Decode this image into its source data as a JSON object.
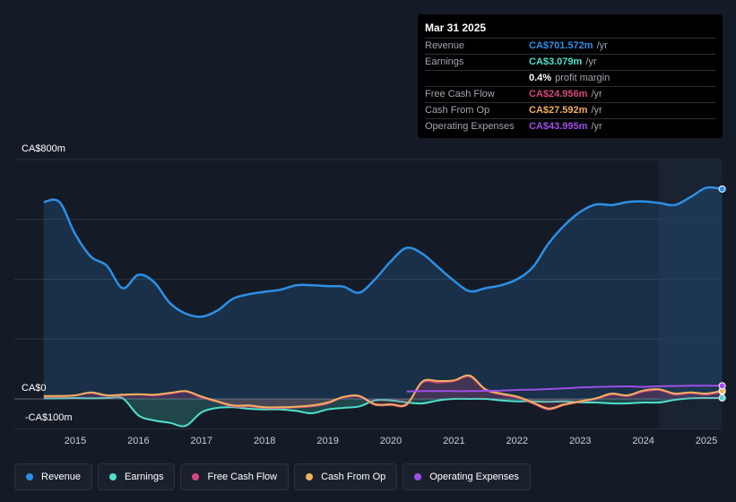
{
  "chart_data": {
    "type": "line",
    "title": "",
    "xlabel": "",
    "ylabel": "",
    "ylim": [
      -100,
      800
    ],
    "x_ticks": [
      "2015",
      "2016",
      "2017",
      "2018",
      "2019",
      "2020",
      "2021",
      "2022",
      "2023",
      "2024",
      "2025"
    ],
    "y_labels": {
      "top": "CA$800m",
      "zero": "CA$0",
      "bottom": "-CA$100m"
    },
    "series": [
      {
        "name": "Revenue",
        "color": "#2d8fe6",
        "fill": true,
        "points": [
          [
            2014.5,
            658
          ],
          [
            2014.75,
            658
          ],
          [
            2015.0,
            550
          ],
          [
            2015.25,
            475
          ],
          [
            2015.5,
            445
          ],
          [
            2015.75,
            370
          ],
          [
            2016.0,
            415
          ],
          [
            2016.25,
            390
          ],
          [
            2016.5,
            320
          ],
          [
            2016.75,
            285
          ],
          [
            2017.0,
            275
          ],
          [
            2017.25,
            295
          ],
          [
            2017.5,
            335
          ],
          [
            2017.75,
            350
          ],
          [
            2018.0,
            358
          ],
          [
            2018.25,
            365
          ],
          [
            2018.5,
            380
          ],
          [
            2018.75,
            380
          ],
          [
            2019.0,
            377
          ],
          [
            2019.25,
            375
          ],
          [
            2019.5,
            355
          ],
          [
            2019.75,
            400
          ],
          [
            2020.0,
            460
          ],
          [
            2020.25,
            505
          ],
          [
            2020.5,
            485
          ],
          [
            2020.75,
            440
          ],
          [
            2021.0,
            395
          ],
          [
            2021.25,
            360
          ],
          [
            2021.5,
            370
          ],
          [
            2021.75,
            380
          ],
          [
            2022.0,
            400
          ],
          [
            2022.25,
            440
          ],
          [
            2022.5,
            520
          ],
          [
            2022.75,
            580
          ],
          [
            2023.0,
            625
          ],
          [
            2023.25,
            650
          ],
          [
            2023.5,
            648
          ],
          [
            2023.75,
            658
          ],
          [
            2024.0,
            660
          ],
          [
            2024.25,
            655
          ],
          [
            2024.5,
            648
          ],
          [
            2024.75,
            675
          ],
          [
            2025.0,
            706
          ],
          [
            2025.25,
            701.572
          ]
        ]
      },
      {
        "name": "Earnings",
        "color": "#4ee0cc",
        "fill": true,
        "points": [
          [
            2014.5,
            2
          ],
          [
            2014.75,
            2
          ],
          [
            2015.0,
            3
          ],
          [
            2015.25,
            2
          ],
          [
            2015.5,
            3
          ],
          [
            2015.75,
            2
          ],
          [
            2016.0,
            -55
          ],
          [
            2016.25,
            -72
          ],
          [
            2016.5,
            -80
          ],
          [
            2016.75,
            -90
          ],
          [
            2017.0,
            -45
          ],
          [
            2017.25,
            -30
          ],
          [
            2017.5,
            -28
          ],
          [
            2017.75,
            -33
          ],
          [
            2018.0,
            -35
          ],
          [
            2018.25,
            -35
          ],
          [
            2018.5,
            -40
          ],
          [
            2018.75,
            -48
          ],
          [
            2019.0,
            -35
          ],
          [
            2019.25,
            -30
          ],
          [
            2019.5,
            -25
          ],
          [
            2019.75,
            -5
          ],
          [
            2020.0,
            -5
          ],
          [
            2020.25,
            -12
          ],
          [
            2020.5,
            -15
          ],
          [
            2020.75,
            -5
          ],
          [
            2021.0,
            0
          ],
          [
            2021.25,
            0
          ],
          [
            2021.5,
            0
          ],
          [
            2021.75,
            -5
          ],
          [
            2022.0,
            -8
          ],
          [
            2022.25,
            -8
          ],
          [
            2022.5,
            -10
          ],
          [
            2022.75,
            -8
          ],
          [
            2023.0,
            -12
          ],
          [
            2023.25,
            -12
          ],
          [
            2023.5,
            -15
          ],
          [
            2023.75,
            -15
          ],
          [
            2024.0,
            -12
          ],
          [
            2024.25,
            -12
          ],
          [
            2024.5,
            -3
          ],
          [
            2024.75,
            2
          ],
          [
            2025.0,
            3
          ],
          [
            2025.25,
            3.079
          ]
        ]
      },
      {
        "name": "Free Cash Flow",
        "color": "#d6477f",
        "fill": true,
        "points": [
          [
            2014.5,
            8
          ],
          [
            2014.75,
            8
          ],
          [
            2015.0,
            12
          ],
          [
            2015.25,
            20
          ],
          [
            2015.5,
            10
          ],
          [
            2015.75,
            12
          ],
          [
            2016.0,
            15
          ],
          [
            2016.25,
            12
          ],
          [
            2016.5,
            18
          ],
          [
            2016.75,
            25
          ],
          [
            2017.0,
            5
          ],
          [
            2017.25,
            -10
          ],
          [
            2017.5,
            -25
          ],
          [
            2017.75,
            -25
          ],
          [
            2018.0,
            -30
          ],
          [
            2018.25,
            -30
          ],
          [
            2018.5,
            -28
          ],
          [
            2018.75,
            -25
          ],
          [
            2019.0,
            -15
          ],
          [
            2019.25,
            5
          ],
          [
            2019.5,
            8
          ],
          [
            2019.75,
            -20
          ],
          [
            2020.0,
            -20
          ],
          [
            2020.25,
            -20
          ],
          [
            2020.5,
            55
          ],
          [
            2020.75,
            55
          ],
          [
            2021.0,
            60
          ],
          [
            2021.25,
            75
          ],
          [
            2021.5,
            30
          ],
          [
            2021.75,
            15
          ],
          [
            2022.0,
            5
          ],
          [
            2022.25,
            -15
          ],
          [
            2022.5,
            -35
          ],
          [
            2022.75,
            -20
          ],
          [
            2023.0,
            -10
          ],
          [
            2023.25,
            0
          ],
          [
            2023.5,
            15
          ],
          [
            2023.75,
            10
          ],
          [
            2024.0,
            25
          ],
          [
            2024.25,
            30
          ],
          [
            2024.5,
            15
          ],
          [
            2024.75,
            20
          ],
          [
            2025.0,
            15
          ],
          [
            2025.25,
            24.956
          ]
        ]
      },
      {
        "name": "Cash From Op",
        "color": "#f0b060",
        "fill": false,
        "points": [
          [
            2014.5,
            10
          ],
          [
            2014.75,
            10
          ],
          [
            2015.0,
            12
          ],
          [
            2015.25,
            22
          ],
          [
            2015.5,
            12
          ],
          [
            2015.75,
            14
          ],
          [
            2016.0,
            16
          ],
          [
            2016.25,
            14
          ],
          [
            2016.5,
            20
          ],
          [
            2016.75,
            26
          ],
          [
            2017.0,
            8
          ],
          [
            2017.25,
            -8
          ],
          [
            2017.5,
            -22
          ],
          [
            2017.75,
            -22
          ],
          [
            2018.0,
            -28
          ],
          [
            2018.25,
            -28
          ],
          [
            2018.5,
            -26
          ],
          [
            2018.75,
            -22
          ],
          [
            2019.0,
            -12
          ],
          [
            2019.25,
            7
          ],
          [
            2019.5,
            10
          ],
          [
            2019.75,
            -18
          ],
          [
            2020.0,
            -18
          ],
          [
            2020.25,
            -18
          ],
          [
            2020.5,
            58
          ],
          [
            2020.75,
            60
          ],
          [
            2021.0,
            62
          ],
          [
            2021.25,
            78
          ],
          [
            2021.5,
            32
          ],
          [
            2021.75,
            18
          ],
          [
            2022.0,
            8
          ],
          [
            2022.25,
            -12
          ],
          [
            2022.5,
            -32
          ],
          [
            2022.75,
            -18
          ],
          [
            2023.0,
            -8
          ],
          [
            2023.25,
            2
          ],
          [
            2023.5,
            18
          ],
          [
            2023.75,
            12
          ],
          [
            2024.0,
            28
          ],
          [
            2024.25,
            32
          ],
          [
            2024.5,
            18
          ],
          [
            2024.75,
            22
          ],
          [
            2025.0,
            18
          ],
          [
            2025.25,
            27.592
          ]
        ]
      },
      {
        "name": "Operating Expenses",
        "color": "#9d4fe6",
        "fill": false,
        "points": [
          [
            2020.25,
            25
          ],
          [
            2020.5,
            26
          ],
          [
            2020.75,
            26
          ],
          [
            2021.0,
            26
          ],
          [
            2021.25,
            26
          ],
          [
            2021.5,
            27
          ],
          [
            2021.75,
            28
          ],
          [
            2022.0,
            30
          ],
          [
            2022.25,
            31
          ],
          [
            2022.5,
            33
          ],
          [
            2022.75,
            35
          ],
          [
            2023.0,
            38
          ],
          [
            2023.25,
            40
          ],
          [
            2023.5,
            41
          ],
          [
            2023.75,
            42
          ],
          [
            2024.0,
            40
          ],
          [
            2024.25,
            42
          ],
          [
            2024.5,
            43
          ],
          [
            2024.75,
            44
          ],
          [
            2025.0,
            44
          ],
          [
            2025.25,
            43.995
          ]
        ]
      }
    ]
  },
  "tooltip": {
    "date": "Mar 31 2025",
    "rows": [
      {
        "label": "Revenue",
        "value": "CA$701.572m",
        "unit": "/yr",
        "color": "#2d8fe6"
      },
      {
        "label": "Earnings",
        "value": "CA$3.079m",
        "unit": "/yr",
        "color": "#4ee0cc"
      },
      {
        "label": "",
        "value": "0.4%",
        "unit": "profit margin",
        "color": "#ffffff"
      },
      {
        "label": "Free Cash Flow",
        "value": "CA$24.956m",
        "unit": "/yr",
        "color": "#d6477f"
      },
      {
        "label": "Cash From Op",
        "value": "CA$27.592m",
        "unit": "/yr",
        "color": "#f0b060"
      },
      {
        "label": "Operating Expenses",
        "value": "CA$43.995m",
        "unit": "/yr",
        "color": "#9d4fe6"
      }
    ]
  },
  "legend": [
    {
      "label": "Revenue",
      "color": "#2d8fe6"
    },
    {
      "label": "Earnings",
      "color": "#4ee0cc"
    },
    {
      "label": "Free Cash Flow",
      "color": "#d6477f"
    },
    {
      "label": "Cash From Op",
      "color": "#f0b060"
    },
    {
      "label": "Operating Expenses",
      "color": "#9d4fe6"
    }
  ]
}
